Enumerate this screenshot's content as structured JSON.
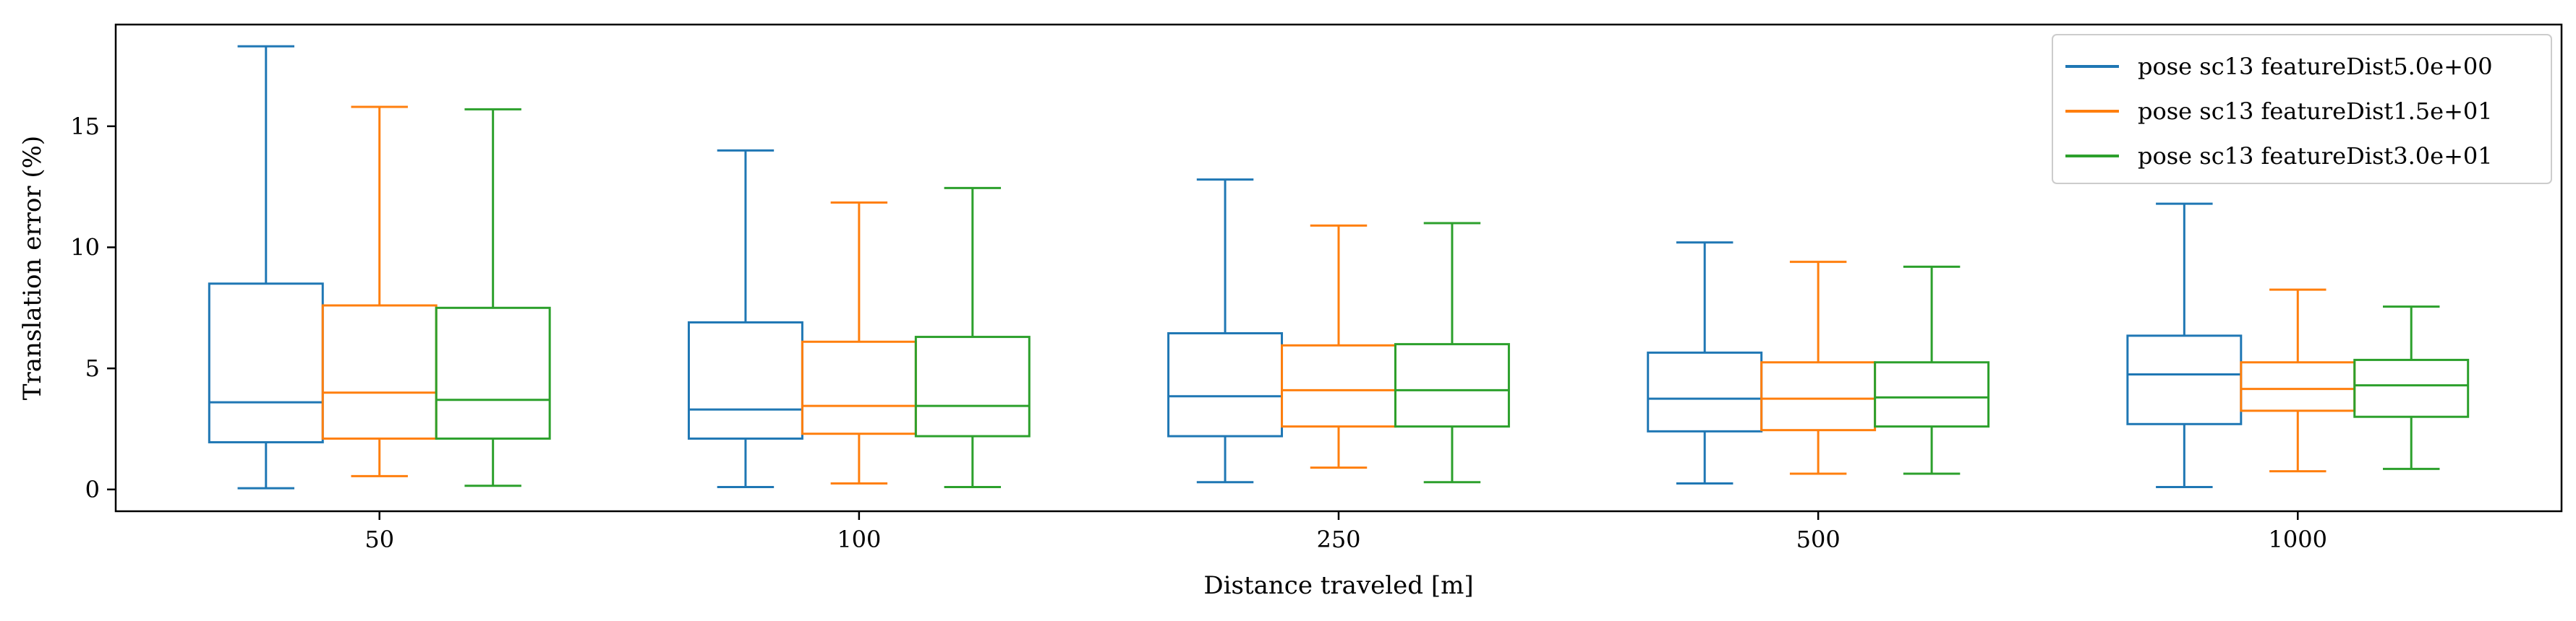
{
  "chart_data": {
    "type": "box",
    "categories": [
      "50",
      "100",
      "250",
      "500",
      "1000"
    ],
    "xlabel": "Distance traveled [m]",
    "ylabel": "Translation error (%)",
    "ylim": [
      -0.9,
      19.2
    ],
    "yticks": [
      0,
      5,
      10,
      15
    ],
    "grid": false,
    "legend": "top-right",
    "series": [
      {
        "name": "pose sc13 featureDist5.0e+00",
        "color": "#1f77b4",
        "boxes": [
          {
            "whisker_low": 0.05,
            "q1": 1.95,
            "median": 3.6,
            "q3": 8.5,
            "whisker_high": 18.3
          },
          {
            "whisker_low": 0.1,
            "q1": 2.1,
            "median": 3.3,
            "q3": 6.9,
            "whisker_high": 14.0
          },
          {
            "whisker_low": 0.3,
            "q1": 2.2,
            "median": 3.85,
            "q3": 6.45,
            "whisker_high": 12.8
          },
          {
            "whisker_low": 0.25,
            "q1": 2.4,
            "median": 3.75,
            "q3": 5.65,
            "whisker_high": 10.2
          },
          {
            "whisker_low": 0.1,
            "q1": 2.7,
            "median": 4.75,
            "q3": 6.35,
            "whisker_high": 11.8
          }
        ]
      },
      {
        "name": "pose sc13 featureDist1.5e+01",
        "color": "#ff7f0e",
        "boxes": [
          {
            "whisker_low": 0.55,
            "q1": 2.1,
            "median": 4.0,
            "q3": 7.6,
            "whisker_high": 15.8
          },
          {
            "whisker_low": 0.25,
            "q1": 2.3,
            "median": 3.45,
            "q3": 6.1,
            "whisker_high": 11.85
          },
          {
            "whisker_low": 0.9,
            "q1": 2.6,
            "median": 4.1,
            "q3": 5.95,
            "whisker_high": 10.9
          },
          {
            "whisker_low": 0.65,
            "q1": 2.45,
            "median": 3.75,
            "q3": 5.25,
            "whisker_high": 9.4
          },
          {
            "whisker_low": 0.75,
            "q1": 3.25,
            "median": 4.15,
            "q3": 5.25,
            "whisker_high": 8.25
          }
        ]
      },
      {
        "name": "pose sc13 featureDist3.0e+01",
        "color": "#2ca02c",
        "boxes": [
          {
            "whisker_low": 0.15,
            "q1": 2.1,
            "median": 3.7,
            "q3": 7.5,
            "whisker_high": 15.7
          },
          {
            "whisker_low": 0.1,
            "q1": 2.2,
            "median": 3.45,
            "q3": 6.3,
            "whisker_high": 12.45
          },
          {
            "whisker_low": 0.3,
            "q1": 2.6,
            "median": 4.1,
            "q3": 6.0,
            "whisker_high": 11.0
          },
          {
            "whisker_low": 0.65,
            "q1": 2.6,
            "median": 3.8,
            "q3": 5.25,
            "whisker_high": 9.2
          },
          {
            "whisker_low": 0.85,
            "q1": 3.0,
            "median": 4.3,
            "q3": 5.35,
            "whisker_high": 7.55
          }
        ]
      }
    ]
  }
}
